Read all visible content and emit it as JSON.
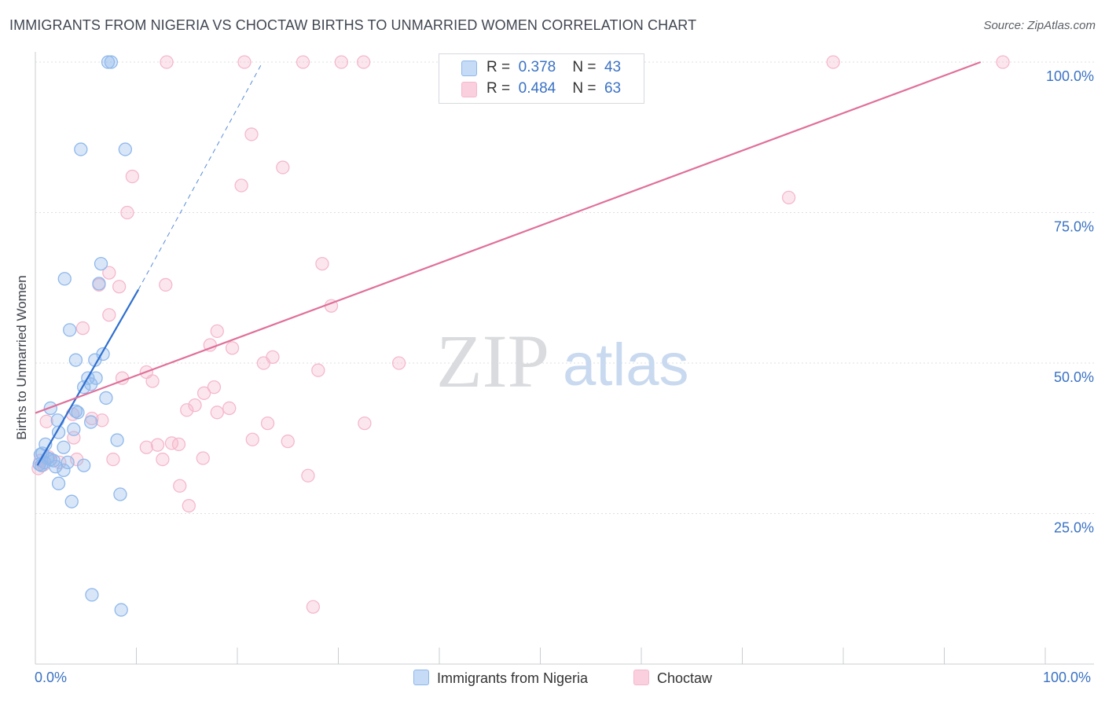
{
  "chart_data": {
    "type": "scatter",
    "title": "IMMIGRANTS FROM NIGERIA VS CHOCTAW BIRTHS TO UNMARRIED WOMEN CORRELATION CHART",
    "source": "Source: ZipAtlas.com",
    "xlabel": "",
    "ylabel": "Births to Unmarried Women",
    "xlim": [
      0,
      100
    ],
    "ylim": [
      0,
      100
    ],
    "x_tick_labels": [
      "0.0%",
      "100.0%"
    ],
    "y_tick_labels": [
      "100.0%",
      "75.0%",
      "50.0%",
      "25.0%"
    ],
    "y_tick_values": [
      100,
      75,
      50,
      25
    ],
    "grid": true,
    "legend_position": "top-center",
    "watermark": "ZIPatlas",
    "series": [
      {
        "name": "Immigrants from Nigeria",
        "color": "#8fb8ec",
        "line_color": "#2e6fcf",
        "R": "0.378",
        "N": "43",
        "trend": {
          "x0": 0.2,
          "y0": 33,
          "x1": 10.2,
          "y1": 62.2,
          "dash_x1": 22.5,
          "dash_y1": 100
        },
        "points": [
          [
            7.2,
            100
          ],
          [
            7.5,
            100
          ],
          [
            4.5,
            85.5
          ],
          [
            8.9,
            85.5
          ],
          [
            6.5,
            66.5
          ],
          [
            2.9,
            64
          ],
          [
            6.3,
            63.2
          ],
          [
            3.4,
            55.5
          ],
          [
            4,
            50.5
          ],
          [
            6.7,
            51.5
          ],
          [
            5.9,
            50.5
          ],
          [
            5.2,
            47.5
          ],
          [
            5.5,
            46.5
          ],
          [
            4.8,
            46
          ],
          [
            6,
            47.5
          ],
          [
            1.5,
            42.5
          ],
          [
            4,
            42
          ],
          [
            4.2,
            41.8
          ],
          [
            2.2,
            40.5
          ],
          [
            5.5,
            40.2
          ],
          [
            2.3,
            38.5
          ],
          [
            3.8,
            39
          ],
          [
            8.1,
            37.2
          ],
          [
            7,
            44.2
          ],
          [
            1,
            36.5
          ],
          [
            2.8,
            36
          ],
          [
            0.7,
            35
          ],
          [
            0.5,
            34.8
          ],
          [
            1.2,
            34.2
          ],
          [
            1.5,
            34
          ],
          [
            1.8,
            33.8
          ],
          [
            0.9,
            33.5
          ],
          [
            0.6,
            33
          ],
          [
            0.4,
            33.2
          ],
          [
            3.2,
            33.5
          ],
          [
            4.8,
            33
          ],
          [
            2,
            32.8
          ],
          [
            2.8,
            32.2
          ],
          [
            2.3,
            30
          ],
          [
            3.6,
            27
          ],
          [
            8.4,
            28.2
          ],
          [
            5.6,
            11.5
          ],
          [
            8.5,
            9
          ]
        ]
      },
      {
        "name": "Choctaw",
        "color": "#f5b8cc",
        "line_color": "#e0709a",
        "R": "0.484",
        "N": "63",
        "trend": {
          "x0": 0,
          "y0": 41.7,
          "x1": 93.6,
          "y1": 100
        },
        "points": [
          [
            13,
            100
          ],
          [
            20.7,
            100
          ],
          [
            26.5,
            100
          ],
          [
            30.3,
            100
          ],
          [
            32.5,
            100
          ],
          [
            79,
            100
          ],
          [
            95.8,
            100
          ],
          [
            21.4,
            88
          ],
          [
            9.6,
            81
          ],
          [
            24.5,
            82.5
          ],
          [
            20.4,
            79.5
          ],
          [
            74.6,
            77.5
          ],
          [
            9.1,
            75
          ],
          [
            28.4,
            66.5
          ],
          [
            7.3,
            65
          ],
          [
            6.3,
            63
          ],
          [
            12.9,
            63
          ],
          [
            8.3,
            62.7
          ],
          [
            29.3,
            59.5
          ],
          [
            7.3,
            58
          ],
          [
            18,
            55.3
          ],
          [
            4.7,
            55.8
          ],
          [
            17.3,
            53
          ],
          [
            19.5,
            52.5
          ],
          [
            23.5,
            51
          ],
          [
            22.6,
            50
          ],
          [
            36,
            50
          ],
          [
            11,
            48.5
          ],
          [
            28,
            48.8
          ],
          [
            8.6,
            47.5
          ],
          [
            11.6,
            47
          ],
          [
            17.7,
            46
          ],
          [
            16.7,
            45
          ],
          [
            15.8,
            43
          ],
          [
            15,
            42.2
          ],
          [
            19.2,
            42.5
          ],
          [
            18,
            41.8
          ],
          [
            3.7,
            41.5
          ],
          [
            1.1,
            40.3
          ],
          [
            5.6,
            40.8
          ],
          [
            6.6,
            40.5
          ],
          [
            23,
            40
          ],
          [
            32.6,
            40
          ],
          [
            3.8,
            37.6
          ],
          [
            21.5,
            37.3
          ],
          [
            25,
            37
          ],
          [
            13.5,
            36.7
          ],
          [
            14.2,
            36.5
          ],
          [
            11,
            36
          ],
          [
            12.1,
            36.4
          ],
          [
            7.7,
            34
          ],
          [
            12.6,
            34
          ],
          [
            16.6,
            34.2
          ],
          [
            4.1,
            34
          ],
          [
            2.4,
            33.5
          ],
          [
            0.8,
            33.1
          ],
          [
            0.3,
            32.5
          ],
          [
            27,
            31.3
          ],
          [
            14.3,
            29.6
          ],
          [
            15.2,
            26.3
          ],
          [
            27.5,
            9.5
          ],
          [
            0.5,
            33.8
          ],
          [
            1.3,
            34.4
          ]
        ]
      }
    ]
  }
}
